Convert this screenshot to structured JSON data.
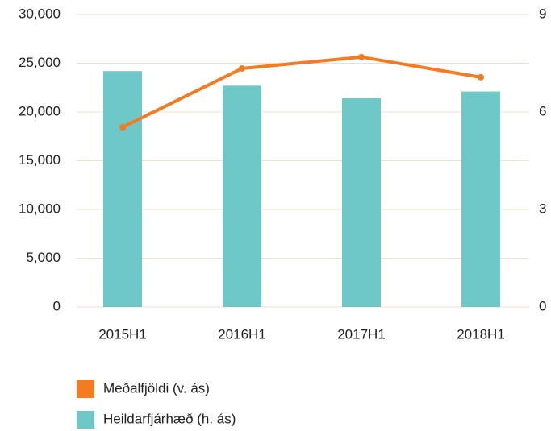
{
  "chart_data": {
    "type": "bar-line",
    "categories": [
      "2015H1",
      "2016H1",
      "2017H1",
      "2018H1"
    ],
    "series": [
      {
        "name": "Meðalfjöldi (v. ás)",
        "color": "#f47b20",
        "type": "line",
        "axis": "y2",
        "values": [
          5.53,
          7.34,
          7.69,
          7.07
        ]
      },
      {
        "name": "Heildarfjárhæð (h. ás)",
        "color": "#6fc8c8",
        "type": "bar",
        "values": [
          24200,
          22700,
          21400,
          22100
        ]
      }
    ],
    "ylim": [
      0,
      30000
    ],
    "yticks": [
      0,
      {
        "value": 5000,
        "label": "5,000"
      },
      {
        "value": 10000,
        "label": "10,000"
      },
      {
        "value": 15000,
        "label": "15,000"
      },
      {
        "value": 20000,
        "label": "20,000"
      },
      {
        "value": 25000,
        "label": "25,000"
      },
      {
        "value": 30000,
        "label": "30,000"
      }
    ],
    "y2lim": [
      0,
      9
    ],
    "y2ticks": [
      0,
      3,
      6,
      9
    ],
    "grid": true
  }
}
